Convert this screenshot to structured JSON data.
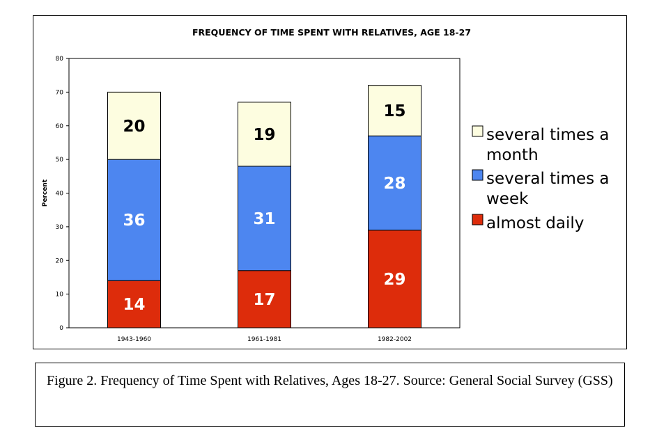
{
  "chart_data": {
    "type": "stacked-bar",
    "title": "FREQUENCY OF TIME SPENT WITH RELATIVES, AGE 18-27",
    "xlabel": "",
    "ylabel": "Percent",
    "ylim": [
      0,
      80
    ],
    "yticks": [
      0,
      10,
      20,
      30,
      40,
      50,
      60,
      70,
      80
    ],
    "categories": [
      "1943-1960",
      "1961-1981",
      "1982-2002"
    ],
    "grid": false,
    "legend_position": "right",
    "series": [
      {
        "name": "almost daily",
        "values": [
          14,
          17,
          29
        ],
        "color": "#dd2c0b",
        "label_color": "#ffffff"
      },
      {
        "name": "several times a week",
        "values": [
          36,
          31,
          28
        ],
        "color": "#4d86f0",
        "label_color": "#ffffff"
      },
      {
        "name": "several times a month",
        "values": [
          20,
          19,
          15
        ],
        "color": "#fdfde0",
        "label_color": "#000000"
      }
    ],
    "legend": [
      {
        "lines": [
          "several times a",
          "month"
        ],
        "color": "#fdfde0"
      },
      {
        "lines": [
          "several times a",
          "week"
        ],
        "color": "#4d86f0"
      },
      {
        "lines": [
          "almost daily"
        ],
        "color": "#dd2c0b"
      }
    ]
  },
  "caption": {
    "text": "Figure 2. Frequency of Time Spent with Relatives, Ages 18-27. Source: General Social Survey (GSS)"
  }
}
